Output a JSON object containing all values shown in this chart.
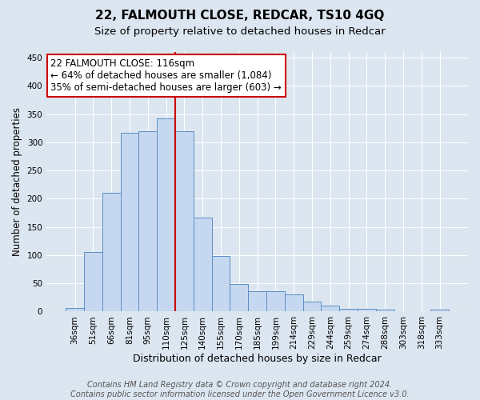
{
  "title": "22, FALMOUTH CLOSE, REDCAR, TS10 4GQ",
  "subtitle": "Size of property relative to detached houses in Redcar",
  "xlabel": "Distribution of detached houses by size in Redcar",
  "ylabel": "Number of detached properties",
  "categories": [
    "36sqm",
    "51sqm",
    "66sqm",
    "81sqm",
    "95sqm",
    "110sqm",
    "125sqm",
    "140sqm",
    "155sqm",
    "170sqm",
    "185sqm",
    "199sqm",
    "214sqm",
    "229sqm",
    "244sqm",
    "259sqm",
    "274sqm",
    "288sqm",
    "303sqm",
    "318sqm",
    "333sqm"
  ],
  "values": [
    7,
    106,
    210,
    317,
    319,
    343,
    319,
    166,
    99,
    49,
    36,
    36,
    30,
    17,
    10,
    5,
    5,
    4,
    1,
    1,
    3
  ],
  "bar_color": "#c5d8f0",
  "bar_edge_color": "#5b8ec4",
  "vline_x": 5.5,
  "vline_color": "#cc0000",
  "annotation_text": "22 FALMOUTH CLOSE: 116sqm\n← 64% of detached houses are smaller (1,084)\n35% of semi-detached houses are larger (603) →",
  "annotation_box_color": "#ffffff",
  "annotation_box_edge": "#cc0000",
  "ylim": [
    0,
    460
  ],
  "yticks": [
    0,
    50,
    100,
    150,
    200,
    250,
    300,
    350,
    400,
    450
  ],
  "footer": "Contains HM Land Registry data © Crown copyright and database right 2024.\nContains public sector information licensed under the Open Government Licence v3.0.",
  "background_color": "#dce6f0",
  "plot_background": "#dce6f0",
  "grid_color": "#ffffff",
  "title_fontsize": 11,
  "subtitle_fontsize": 9.5,
  "xlabel_fontsize": 9,
  "ylabel_fontsize": 8.5,
  "tick_fontsize": 7.5,
  "annotation_fontsize": 8.5,
  "footer_fontsize": 7
}
